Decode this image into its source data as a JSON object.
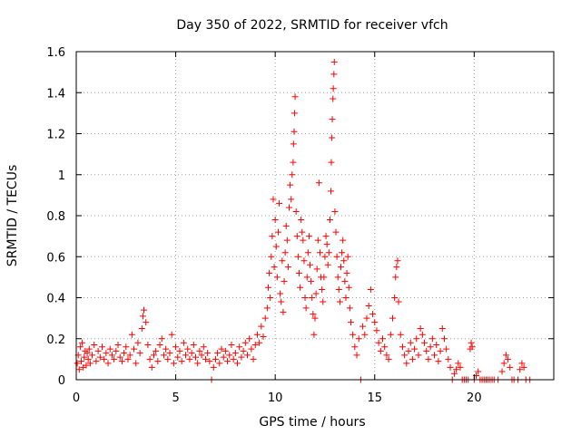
{
  "chart_data": {
    "type": "scatter",
    "title": "Day 350 of 2022, SRMTID for receiver vfch",
    "xlabel": "GPS time / hours",
    "ylabel": "SRMTID / TECUs",
    "xlim": [
      0,
      24
    ],
    "ylim": [
      0,
      1.6
    ],
    "xticks": [
      0,
      5,
      10,
      15,
      20
    ],
    "xtick_labels": [
      "0",
      "5",
      "10",
      "15",
      "20"
    ],
    "yticks": [
      0,
      0.2,
      0.4,
      0.6,
      0.8,
      1.0,
      1.2,
      1.4,
      1.6
    ],
    "ytick_labels": [
      "0",
      "0.2",
      "0.4",
      "0.6",
      "0.8",
      "1",
      "1.2",
      "1.4",
      "1.6"
    ],
    "grid": true,
    "marker": "+",
    "color": "#ff0000",
    "series": [
      {
        "name": "SRMTID",
        "points": [
          [
            0.05,
            0.08
          ],
          [
            0.1,
            0.12
          ],
          [
            0.15,
            0.05
          ],
          [
            0.2,
            0.16
          ],
          [
            0.25,
            0.09
          ],
          [
            0.3,
            0.18
          ],
          [
            0.35,
            0.06
          ],
          [
            0.4,
            0.11
          ],
          [
            0.45,
            0.14
          ],
          [
            0.5,
            0.07
          ],
          [
            0.55,
            0.13
          ],
          [
            0.6,
            0.1
          ],
          [
            0.65,
            0.15
          ],
          [
            0.7,
            0.08
          ],
          [
            0.8,
            0.12
          ],
          [
            0.9,
            0.17
          ],
          [
            1.0,
            0.09
          ],
          [
            1.1,
            0.14
          ],
          [
            1.2,
            0.11
          ],
          [
            1.3,
            0.16
          ],
          [
            1.4,
            0.1
          ],
          [
            1.5,
            0.13
          ],
          [
            1.6,
            0.08
          ],
          [
            1.7,
            0.15
          ],
          [
            1.8,
            0.12
          ],
          [
            1.9,
            0.1
          ],
          [
            2.0,
            0.14
          ],
          [
            2.1,
            0.17
          ],
          [
            2.2,
            0.11
          ],
          [
            2.3,
            0.09
          ],
          [
            2.4,
            0.13
          ],
          [
            2.5,
            0.16
          ],
          [
            2.6,
            0.1
          ],
          [
            2.7,
            0.12
          ],
          [
            2.8,
            0.22
          ],
          [
            2.9,
            0.15
          ],
          [
            3.0,
            0.08
          ],
          [
            3.1,
            0.18
          ],
          [
            3.2,
            0.13
          ],
          [
            3.3,
            0.25
          ],
          [
            3.35,
            0.31
          ],
          [
            3.4,
            0.34
          ],
          [
            3.5,
            0.28
          ],
          [
            3.6,
            0.17
          ],
          [
            3.7,
            0.1
          ],
          [
            3.8,
            0.06
          ],
          [
            3.9,
            0.12
          ],
          [
            4.0,
            0.14
          ],
          [
            4.1,
            0.09
          ],
          [
            4.2,
            0.17
          ],
          [
            4.3,
            0.2
          ],
          [
            4.4,
            0.12
          ],
          [
            4.5,
            0.15
          ],
          [
            4.6,
            0.1
          ],
          [
            4.7,
            0.13
          ],
          [
            4.8,
            0.22
          ],
          [
            4.9,
            0.08
          ],
          [
            5.0,
            0.16
          ],
          [
            5.1,
            0.11
          ],
          [
            5.2,
            0.14
          ],
          [
            5.3,
            0.09
          ],
          [
            5.4,
            0.18
          ],
          [
            5.5,
            0.12
          ],
          [
            5.6,
            0.15
          ],
          [
            5.7,
            0.1
          ],
          [
            5.8,
            0.13
          ],
          [
            5.9,
            0.17
          ],
          [
            6.0,
            0.11
          ],
          [
            6.1,
            0.08
          ],
          [
            6.2,
            0.14
          ],
          [
            6.3,
            0.12
          ],
          [
            6.4,
            0.16
          ],
          [
            6.5,
            0.1
          ],
          [
            6.6,
            0.13
          ],
          [
            6.7,
            0.09
          ],
          [
            6.8,
            0.0
          ],
          [
            6.9,
            0.06
          ],
          [
            7.0,
            0.1
          ],
          [
            7.1,
            0.13
          ],
          [
            7.2,
            0.08
          ],
          [
            7.3,
            0.15
          ],
          [
            7.4,
            0.11
          ],
          [
            7.5,
            0.14
          ],
          [
            7.6,
            0.09
          ],
          [
            7.7,
            0.12
          ],
          [
            7.8,
            0.17
          ],
          [
            7.9,
            0.1
          ],
          [
            8.0,
            0.13
          ],
          [
            8.1,
            0.08
          ],
          [
            8.2,
            0.16
          ],
          [
            8.3,
            0.11
          ],
          [
            8.4,
            0.14
          ],
          [
            8.5,
            0.18
          ],
          [
            8.6,
            0.12
          ],
          [
            8.7,
            0.2
          ],
          [
            8.8,
            0.15
          ],
          [
            8.9,
            0.1
          ],
          [
            9.0,
            0.17
          ],
          [
            9.1,
            0.22
          ],
          [
            9.2,
            0.18
          ],
          [
            9.3,
            0.26
          ],
          [
            9.4,
            0.21
          ],
          [
            9.5,
            0.3
          ],
          [
            9.6,
            0.35
          ],
          [
            9.65,
            0.45
          ],
          [
            9.7,
            0.52
          ],
          [
            9.75,
            0.4
          ],
          [
            9.8,
            0.6
          ],
          [
            9.85,
            0.7
          ],
          [
            9.9,
            0.88
          ],
          [
            9.95,
            0.55
          ],
          [
            10.0,
            0.78
          ],
          [
            10.05,
            0.65
          ],
          [
            10.1,
            0.5
          ],
          [
            10.15,
            0.72
          ],
          [
            10.2,
            0.86
          ],
          [
            10.25,
            0.42
          ],
          [
            10.3,
            0.38
          ],
          [
            10.35,
            0.58
          ],
          [
            10.4,
            0.33
          ],
          [
            10.45,
            0.48
          ],
          [
            10.5,
            0.62
          ],
          [
            10.55,
            0.75
          ],
          [
            10.6,
            0.68
          ],
          [
            10.65,
            0.55
          ],
          [
            10.7,
            0.84
          ],
          [
            10.75,
            0.95
          ],
          [
            10.8,
            0.88
          ],
          [
            10.85,
            1.0
          ],
          [
            10.9,
            1.06
          ],
          [
            10.92,
            1.15
          ],
          [
            10.95,
            1.21
          ],
          [
            10.97,
            1.3
          ],
          [
            11.0,
            1.38
          ],
          [
            11.05,
            0.82
          ],
          [
            11.1,
            0.7
          ],
          [
            11.15,
            0.6
          ],
          [
            11.2,
            0.52
          ],
          [
            11.25,
            0.45
          ],
          [
            11.3,
            0.78
          ],
          [
            11.35,
            0.72
          ],
          [
            11.4,
            0.68
          ],
          [
            11.45,
            0.58
          ],
          [
            11.5,
            0.4
          ],
          [
            11.55,
            0.35
          ],
          [
            11.6,
            0.5
          ],
          [
            11.65,
            0.62
          ],
          [
            11.7,
            0.7
          ],
          [
            11.75,
            0.56
          ],
          [
            11.8,
            0.48
          ],
          [
            11.85,
            0.4
          ],
          [
            11.9,
            0.32
          ],
          [
            11.95,
            0.22
          ],
          [
            12.0,
            0.3
          ],
          [
            12.05,
            0.42
          ],
          [
            12.1,
            0.54
          ],
          [
            12.15,
            0.68
          ],
          [
            12.2,
            0.96
          ],
          [
            12.25,
            0.62
          ],
          [
            12.3,
            0.5
          ],
          [
            12.35,
            0.44
          ],
          [
            12.4,
            0.38
          ],
          [
            12.45,
            0.5
          ],
          [
            12.5,
            0.6
          ],
          [
            12.55,
            0.7
          ],
          [
            12.6,
            0.66
          ],
          [
            12.65,
            0.56
          ],
          [
            12.7,
            0.62
          ],
          [
            12.75,
            0.78
          ],
          [
            12.8,
            0.92
          ],
          [
            12.82,
            1.06
          ],
          [
            12.85,
            1.18
          ],
          [
            12.87,
            1.27
          ],
          [
            12.9,
            1.37
          ],
          [
            12.92,
            1.42
          ],
          [
            12.95,
            1.49
          ],
          [
            12.97,
            1.55
          ],
          [
            13.0,
            0.82
          ],
          [
            13.05,
            0.72
          ],
          [
            13.1,
            0.6
          ],
          [
            13.15,
            0.5
          ],
          [
            13.2,
            0.44
          ],
          [
            13.25,
            0.38
          ],
          [
            13.3,
            0.55
          ],
          [
            13.35,
            0.62
          ],
          [
            13.4,
            0.68
          ],
          [
            13.45,
            0.58
          ],
          [
            13.5,
            0.48
          ],
          [
            13.55,
            0.4
          ],
          [
            13.6,
            0.52
          ],
          [
            13.65,
            0.6
          ],
          [
            13.7,
            0.45
          ],
          [
            13.75,
            0.35
          ],
          [
            13.8,
            0.28
          ],
          [
            13.9,
            0.22
          ],
          [
            14.0,
            0.16
          ],
          [
            14.1,
            0.12
          ],
          [
            14.2,
            0.2
          ],
          [
            14.3,
            0.0
          ],
          [
            14.4,
            0.26
          ],
          [
            14.5,
            0.22
          ],
          [
            14.6,
            0.3
          ],
          [
            14.7,
            0.36
          ],
          [
            14.8,
            0.44
          ],
          [
            14.9,
            0.32
          ],
          [
            15.0,
            0.28
          ],
          [
            15.1,
            0.24
          ],
          [
            15.2,
            0.18
          ],
          [
            15.3,
            0.14
          ],
          [
            15.4,
            0.2
          ],
          [
            15.5,
            0.16
          ],
          [
            15.6,
            0.12
          ],
          [
            15.7,
            0.1
          ],
          [
            15.8,
            0.22
          ],
          [
            15.9,
            0.3
          ],
          [
            16.0,
            0.4
          ],
          [
            16.05,
            0.5
          ],
          [
            16.1,
            0.55
          ],
          [
            16.15,
            0.58
          ],
          [
            16.2,
            0.38
          ],
          [
            16.3,
            0.22
          ],
          [
            16.4,
            0.16
          ],
          [
            16.5,
            0.12
          ],
          [
            16.6,
            0.08
          ],
          [
            16.7,
            0.14
          ],
          [
            16.8,
            0.18
          ],
          [
            16.9,
            0.1
          ],
          [
            17.0,
            0.15
          ],
          [
            17.1,
            0.2
          ],
          [
            17.2,
            0.12
          ],
          [
            17.3,
            0.25
          ],
          [
            17.4,
            0.22
          ],
          [
            17.5,
            0.18
          ],
          [
            17.6,
            0.14
          ],
          [
            17.7,
            0.1
          ],
          [
            17.8,
            0.16
          ],
          [
            17.9,
            0.2
          ],
          [
            18.0,
            0.12
          ],
          [
            18.1,
            0.17
          ],
          [
            18.2,
            0.09
          ],
          [
            18.3,
            0.14
          ],
          [
            18.4,
            0.25
          ],
          [
            18.5,
            0.2
          ],
          [
            18.6,
            0.15
          ],
          [
            18.7,
            0.1
          ],
          [
            18.8,
            0.06
          ],
          [
            18.9,
            0.0
          ],
          [
            19.0,
            0.03
          ],
          [
            19.1,
            0.05
          ],
          [
            19.2,
            0.08
          ],
          [
            19.3,
            0.06
          ],
          [
            19.4,
            0.0
          ],
          [
            19.5,
            0.0
          ],
          [
            19.6,
            0.0
          ],
          [
            19.7,
            0.0
          ],
          [
            19.8,
            0.15
          ],
          [
            19.85,
            0.18
          ],
          [
            19.9,
            0.16
          ],
          [
            20.0,
            0.0
          ],
          [
            20.1,
            0.02
          ],
          [
            20.2,
            0.04
          ],
          [
            20.3,
            0.0
          ],
          [
            20.4,
            0.0
          ],
          [
            20.5,
            0.0
          ],
          [
            20.6,
            0.0
          ],
          [
            20.7,
            0.0
          ],
          [
            20.8,
            0.0
          ],
          [
            20.9,
            0.0
          ],
          [
            21.0,
            0.0
          ],
          [
            21.2,
            0.0
          ],
          [
            21.4,
            0.04
          ],
          [
            21.5,
            0.08
          ],
          [
            21.6,
            0.12
          ],
          [
            21.7,
            0.1
          ],
          [
            21.8,
            0.06
          ],
          [
            21.9,
            0.0
          ],
          [
            22.0,
            0.0
          ],
          [
            22.2,
            0.0
          ],
          [
            22.3,
            0.05
          ],
          [
            22.4,
            0.08
          ],
          [
            22.5,
            0.06
          ],
          [
            22.6,
            0.0
          ],
          [
            22.8,
            0.0
          ]
        ]
      }
    ]
  }
}
